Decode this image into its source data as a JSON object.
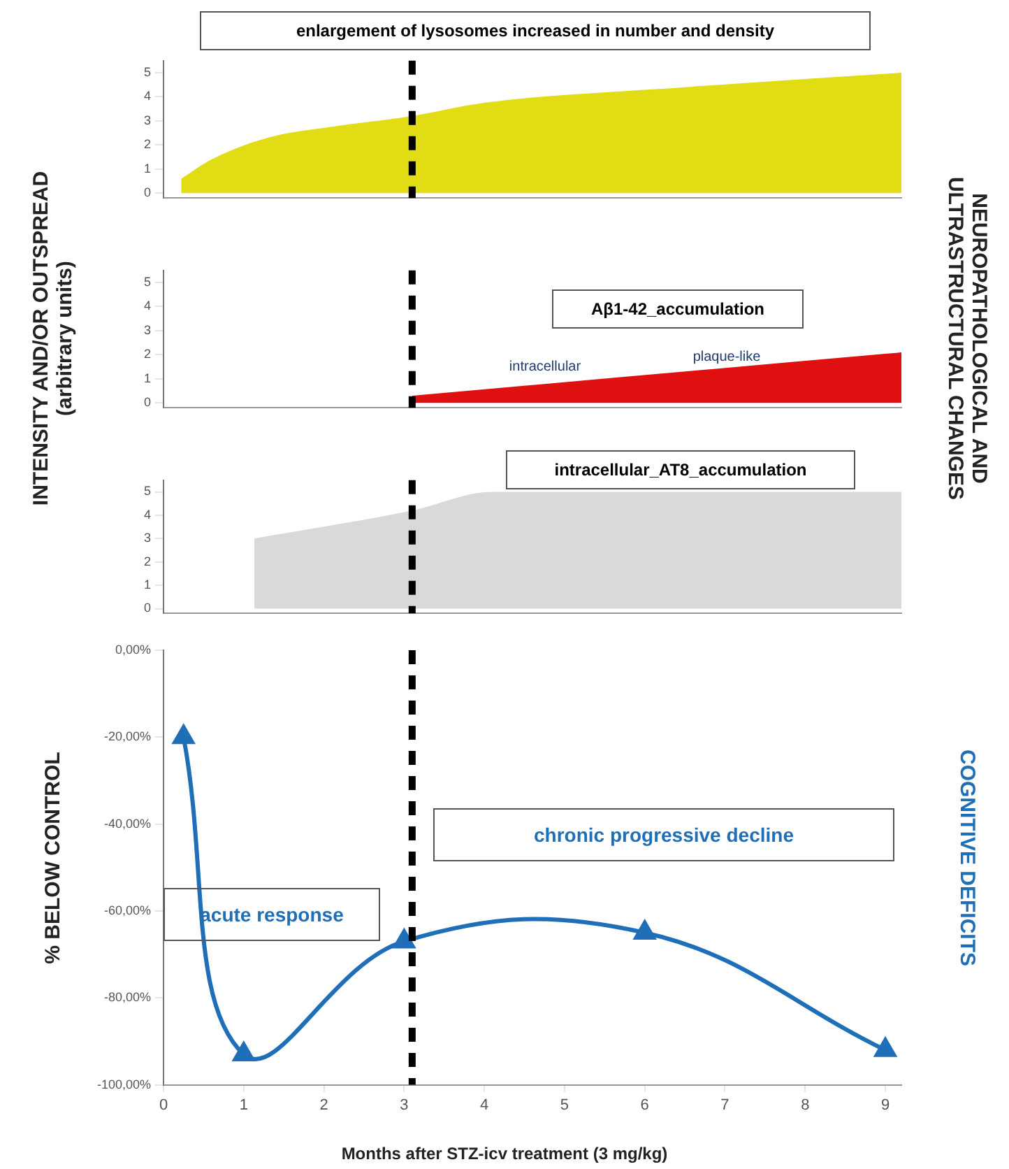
{
  "chart_data": [
    {
      "type": "area",
      "x": [
        0.22,
        0.6,
        1.3,
        2.2,
        3.1,
        4.0,
        6.5,
        9.2
      ],
      "values": [
        0.6,
        1.4,
        2.3,
        2.8,
        3.2,
        3.75,
        4.4,
        5
      ],
      "color": "#e2dc14",
      "xlim": [
        0,
        9.2
      ],
      "ylim": [
        -0.2,
        5.5
      ],
      "yticks": [
        0,
        1,
        2,
        3,
        4,
        5
      ],
      "tick_labels": "y",
      "annotations": [
        "enlargement of lysosomes  increased in  number and density"
      ],
      "ref_lines": [
        {
          "axis": "x",
          "value": 3.1,
          "color": "#000000",
          "line_style": "dashed"
        }
      ]
    },
    {
      "type": "area",
      "x": [
        3.1,
        9.2
      ],
      "values": [
        0.3,
        2.1
      ],
      "color": "#e01010",
      "xlim": [
        0,
        9.2
      ],
      "ylim": [
        -0.2,
        5.5
      ],
      "yticks": [
        0,
        1,
        2,
        3,
        4,
        5
      ],
      "tick_labels": "y",
      "ylabel": "INTENSITY AND/OR OUTSPREAD (arbitrary units)",
      "y2label": "NEUROPATHOLOGICAL AND ULTRASTRUCTURAL CHANGES",
      "annotations": [
        "Aβ1-42_accumulation",
        "intracellular",
        "plaque-like"
      ],
      "ref_lines": [
        {
          "axis": "x",
          "value": 3.1,
          "color": "#000000",
          "line_style": "dashed"
        }
      ]
    },
    {
      "type": "area",
      "x": [
        1.13,
        3.1,
        4.1,
        9.2
      ],
      "values": [
        3,
        4.2,
        5,
        5
      ],
      "color": "#d9d9d9",
      "xlim": [
        0,
        9.2
      ],
      "ylim": [
        -0.2,
        5.5
      ],
      "yticks": [
        0,
        1,
        2,
        3,
        4,
        5
      ],
      "tick_labels": "y",
      "annotations": [
        "intracellular_AT8_accumulation"
      ],
      "ref_lines": [
        {
          "axis": "x",
          "value": 3.1,
          "color": "#000000",
          "line_style": "dashed"
        }
      ]
    },
    {
      "type": "line",
      "x": [
        0.25,
        1,
        3,
        6,
        9
      ],
      "values": [
        -20,
        -93,
        -67,
        -65,
        -92
      ],
      "color": "#1f6fb8",
      "marker": "triangle",
      "xlim": [
        0,
        9.2
      ],
      "xticks": [
        0,
        1,
        2,
        3,
        4,
        5,
        6,
        7,
        8,
        9
      ],
      "ylim": [
        -100,
        0
      ],
      "yticks": [
        {
          "value": 0,
          "label": "0,00%"
        },
        {
          "value": -20,
          "label": "-20,00%"
        },
        {
          "value": -40,
          "label": "-40,00%"
        },
        {
          "value": -60,
          "label": "-60,00%"
        },
        {
          "value": -80,
          "label": "-80,00%"
        },
        {
          "value": -100,
          "label": "-100,00%"
        }
      ],
      "xlabel": "Months after STZ-icv treatment (3 mg/kg)",
      "ylabel": "% BELOW CONTROL",
      "y2label": "COGNITIVE DEFICITS",
      "annotations": [
        "chronic progressive decline",
        "acute response"
      ],
      "ref_lines": [
        {
          "axis": "x",
          "value": 3.1,
          "color": "#000000",
          "line_style": "dashed"
        }
      ]
    }
  ]
}
